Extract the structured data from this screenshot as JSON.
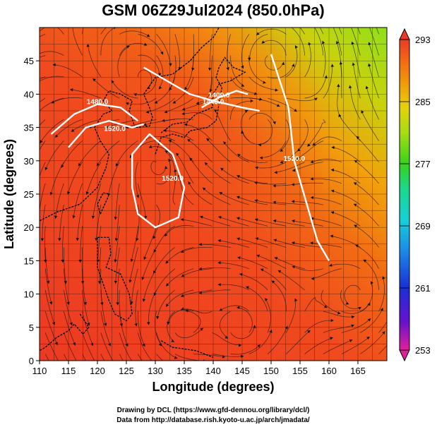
{
  "chart_data": {
    "type": "heatmap",
    "title": "GSM 06Z29Jul2024 (850.0hPa)",
    "xlabel": "Longitude (degrees)",
    "ylabel": "Latitude  (degrees)",
    "xlim": [
      110,
      170
    ],
    "ylim": [
      0,
      50
    ],
    "x_ticks": [
      110,
      115,
      120,
      125,
      130,
      135,
      140,
      145,
      150,
      155,
      160,
      165
    ],
    "y_ticks": [
      0,
      5,
      10,
      15,
      20,
      25,
      30,
      35,
      40,
      45
    ],
    "grid": true,
    "colorbar": {
      "range": [
        253,
        293
      ],
      "ticks": [
        293,
        285,
        277,
        269,
        261,
        253
      ],
      "colors": [
        "#e0209a",
        "#6a11cc",
        "#1a2fd6",
        "#1a8ae8",
        "#17d0d9",
        "#1ad88c",
        "#38d21a",
        "#a6dc12",
        "#e6d20a",
        "#f09a08",
        "#f26a14",
        "#ea3c24"
      ]
    },
    "contours": [
      {
        "label": "1400.0"
      },
      {
        "label": "1440.0"
      },
      {
        "label": "1480.0"
      },
      {
        "label": "1520.0"
      },
      {
        "label": "1520.0"
      },
      {
        "label": "1520.0"
      }
    ],
    "series": [
      {
        "values": [
          [
            110,
            0,
            293
          ],
          [
            120,
            0,
            292
          ],
          [
            130,
            0,
            291
          ],
          [
            140,
            0,
            291
          ],
          [
            150,
            0,
            291
          ],
          [
            160,
            0,
            292
          ],
          [
            170,
            0,
            292
          ],
          [
            110,
            10,
            292
          ],
          [
            120,
            10,
            291
          ],
          [
            130,
            10,
            291
          ],
          [
            140,
            10,
            291
          ],
          [
            150,
            10,
            290
          ],
          [
            160,
            10,
            291
          ],
          [
            170,
            10,
            290
          ],
          [
            110,
            20,
            293
          ],
          [
            120,
            20,
            292
          ],
          [
            130,
            20,
            292
          ],
          [
            140,
            20,
            291
          ],
          [
            150,
            20,
            290
          ],
          [
            160,
            20,
            290
          ],
          [
            170,
            20,
            289
          ],
          [
            110,
            30,
            293
          ],
          [
            120,
            30,
            293
          ],
          [
            130,
            30,
            292
          ],
          [
            140,
            30,
            291
          ],
          [
            150,
            30,
            290
          ],
          [
            160,
            30,
            289
          ],
          [
            170,
            30,
            287
          ],
          [
            110,
            40,
            293
          ],
          [
            120,
            40,
            293
          ],
          [
            130,
            40,
            292
          ],
          [
            140,
            40,
            289
          ],
          [
            150,
            40,
            286
          ],
          [
            160,
            40,
            285
          ],
          [
            170,
            40,
            284
          ],
          [
            110,
            50,
            293
          ],
          [
            120,
            50,
            292
          ],
          [
            130,
            50,
            290
          ],
          [
            140,
            50,
            285
          ],
          [
            150,
            50,
            283
          ],
          [
            160,
            50,
            282
          ],
          [
            170,
            50,
            280
          ]
        ]
      }
    ]
  },
  "credits": {
    "line1": "Drawing by DCL (https://www.gfd-dennou.org/library/dcl/)",
    "line2": "Data from http://database.rish.kyoto-u.ac.jp/arch/jmadata/"
  }
}
